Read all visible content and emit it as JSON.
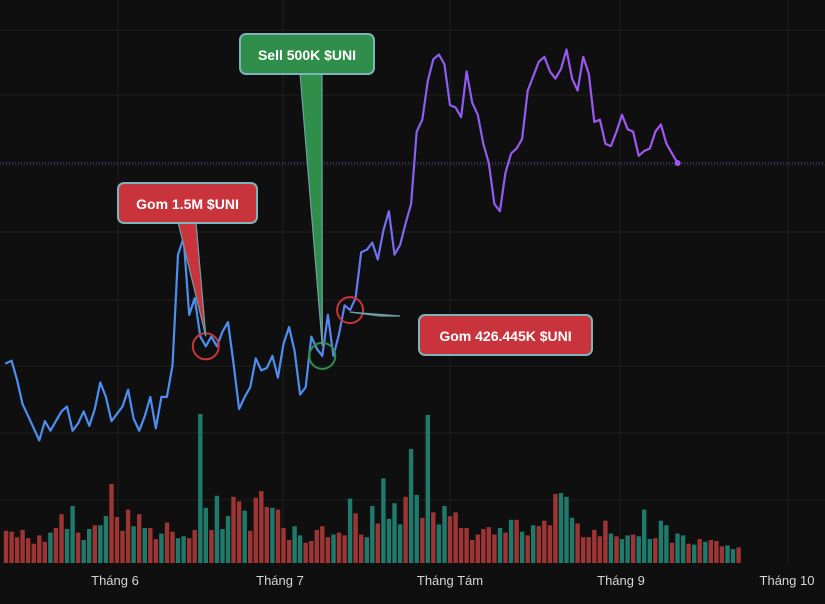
{
  "chart_data": {
    "type": "line",
    "grid": true,
    "price_line": true,
    "colors": {
      "background": "#0f0f0f",
      "grid": "#1f1f1f",
      "line_early": "#4d8ff0",
      "line_late": "#a455f0",
      "volume_up": "#1f7a6c",
      "volume_down": "#9c3534",
      "price_line": "#5a67c8",
      "callout_red": "#c9343c",
      "callout_green": "#2f8f4a"
    },
    "x_ticks": [
      "Tháng 6",
      "Tháng 7",
      "Tháng Tám",
      "Tháng 9",
      "Tháng 10"
    ],
    "price_series": {
      "name": "",
      "values": [
        0.16,
        0.17,
        0.09,
        -0.01,
        -0.06,
        -0.11,
        -0.16,
        -0.08,
        -0.12,
        -0.08,
        -0.04,
        -0.02,
        -0.12,
        -0.09,
        -0.04,
        -0.1,
        -0.03,
        0.08,
        0.02,
        -0.08,
        -0.05,
        -0.02,
        0.05,
        -0.07,
        -0.12,
        -0.06,
        0.02,
        -0.11,
        0.02,
        0.02,
        0.15,
        0.61,
        0.68,
        0.36,
        0.43,
        0.27,
        0.23,
        0.27,
        0.23,
        0.29,
        0.33,
        0.16,
        -0.03,
        0.02,
        0.06,
        0.18,
        0.13,
        0.14,
        0.19,
        0.1,
        0.24,
        0.31,
        0.21,
        0.03,
        0.06,
        0.27,
        0.22,
        0.19,
        0.36,
        0.19,
        0.28,
        0.4,
        0.38,
        0.43,
        0.62,
        0.63,
        0.66,
        0.59,
        0.71,
        0.79,
        0.61,
        0.65,
        0.74,
        0.82,
        1.12,
        1.17,
        1.33,
        1.42,
        1.44,
        1.4,
        1.23,
        1.22,
        1.18,
        1.37,
        1.24,
        1.19,
        1.07,
        0.99,
        0.82,
        0.79,
        0.95,
        1.03,
        1.05,
        1.09,
        1.29,
        1.35,
        1.41,
        1.43,
        1.37,
        1.34,
        1.38,
        1.46,
        1.34,
        1.29,
        1.43,
        1.36,
        1.16,
        1.17,
        1.07,
        1.06,
        1.12,
        1.19,
        1.13,
        1.12,
        1.02,
        1.04,
        1.05,
        1.12,
        1.15,
        1.07,
        1.03,
        0.99
      ]
    },
    "volume": [
      {
        "v": 0.35,
        "up": false
      },
      {
        "v": 0.34,
        "up": false
      },
      {
        "v": 0.28,
        "up": false
      },
      {
        "v": 0.36,
        "up": false
      },
      {
        "v": 0.27,
        "up": false
      },
      {
        "v": 0.21,
        "up": false
      },
      {
        "v": 0.3,
        "up": false
      },
      {
        "v": 0.23,
        "up": false
      },
      {
        "v": 0.33,
        "up": true
      },
      {
        "v": 0.38,
        "up": false
      },
      {
        "v": 0.53,
        "up": false
      },
      {
        "v": 0.37,
        "up": true
      },
      {
        "v": 0.62,
        "up": true
      },
      {
        "v": 0.33,
        "up": false
      },
      {
        "v": 0.25,
        "up": true
      },
      {
        "v": 0.37,
        "up": true
      },
      {
        "v": 0.41,
        "up": false
      },
      {
        "v": 0.41,
        "up": true
      },
      {
        "v": 0.51,
        "up": true
      },
      {
        "v": 0.86,
        "up": false
      },
      {
        "v": 0.5,
        "up": false
      },
      {
        "v": 0.35,
        "up": false
      },
      {
        "v": 0.58,
        "up": false
      },
      {
        "v": 0.4,
        "up": true
      },
      {
        "v": 0.53,
        "up": false
      },
      {
        "v": 0.38,
        "up": true
      },
      {
        "v": 0.38,
        "up": false
      },
      {
        "v": 0.26,
        "up": false
      },
      {
        "v": 0.32,
        "up": true
      },
      {
        "v": 0.44,
        "up": false
      },
      {
        "v": 0.34,
        "up": false
      },
      {
        "v": 0.27,
        "up": true
      },
      {
        "v": 0.29,
        "up": true
      },
      {
        "v": 0.27,
        "up": false
      },
      {
        "v": 0.36,
        "up": false
      },
      {
        "v": 1.62,
        "up": true
      },
      {
        "v": 0.6,
        "up": true
      },
      {
        "v": 0.36,
        "up": false
      },
      {
        "v": 0.73,
        "up": true
      },
      {
        "v": 0.37,
        "up": true
      },
      {
        "v": 0.51,
        "up": true
      },
      {
        "v": 0.72,
        "up": false
      },
      {
        "v": 0.67,
        "up": false
      },
      {
        "v": 0.57,
        "up": true
      },
      {
        "v": 0.35,
        "up": false
      },
      {
        "v": 0.71,
        "up": false
      },
      {
        "v": 0.78,
        "up": false
      },
      {
        "v": 0.61,
        "up": false
      },
      {
        "v": 0.6,
        "up": true
      },
      {
        "v": 0.58,
        "up": false
      },
      {
        "v": 0.38,
        "up": false
      },
      {
        "v": 0.25,
        "up": false
      },
      {
        "v": 0.4,
        "up": true
      },
      {
        "v": 0.3,
        "up": true
      },
      {
        "v": 0.22,
        "up": false
      },
      {
        "v": 0.24,
        "up": false
      },
      {
        "v": 0.36,
        "up": false
      },
      {
        "v": 0.4,
        "up": false
      },
      {
        "v": 0.28,
        "up": false
      },
      {
        "v": 0.31,
        "up": true
      },
      {
        "v": 0.33,
        "up": false
      },
      {
        "v": 0.3,
        "up": false
      },
      {
        "v": 0.7,
        "up": true
      },
      {
        "v": 0.54,
        "up": false
      },
      {
        "v": 0.31,
        "up": false
      },
      {
        "v": 0.28,
        "up": true
      },
      {
        "v": 0.62,
        "up": true
      },
      {
        "v": 0.43,
        "up": false
      },
      {
        "v": 0.92,
        "up": true
      },
      {
        "v": 0.48,
        "up": true
      },
      {
        "v": 0.65,
        "up": true
      },
      {
        "v": 0.42,
        "up": true
      },
      {
        "v": 0.72,
        "up": false
      },
      {
        "v": 1.24,
        "up": true
      },
      {
        "v": 0.74,
        "up": true
      },
      {
        "v": 0.49,
        "up": false
      },
      {
        "v": 1.61,
        "up": true
      },
      {
        "v": 0.55,
        "up": false
      },
      {
        "v": 0.42,
        "up": true
      },
      {
        "v": 0.62,
        "up": true
      },
      {
        "v": 0.51,
        "up": false
      },
      {
        "v": 0.55,
        "up": false
      },
      {
        "v": 0.38,
        "up": false
      },
      {
        "v": 0.38,
        "up": false
      },
      {
        "v": 0.25,
        "up": false
      },
      {
        "v": 0.31,
        "up": false
      },
      {
        "v": 0.37,
        "up": false
      },
      {
        "v": 0.39,
        "up": false
      },
      {
        "v": 0.31,
        "up": false
      },
      {
        "v": 0.38,
        "up": true
      },
      {
        "v": 0.33,
        "up": false
      },
      {
        "v": 0.47,
        "up": true
      },
      {
        "v": 0.47,
        "up": false
      },
      {
        "v": 0.34,
        "up": true
      },
      {
        "v": 0.3,
        "up": false
      },
      {
        "v": 0.41,
        "up": true
      },
      {
        "v": 0.4,
        "up": false
      },
      {
        "v": 0.46,
        "up": false
      },
      {
        "v": 0.41,
        "up": false
      },
      {
        "v": 0.75,
        "up": false
      },
      {
        "v": 0.76,
        "up": true
      },
      {
        "v": 0.72,
        "up": true
      },
      {
        "v": 0.49,
        "up": true
      },
      {
        "v": 0.43,
        "up": false
      },
      {
        "v": 0.28,
        "up": false
      },
      {
        "v": 0.28,
        "up": false
      },
      {
        "v": 0.36,
        "up": false
      },
      {
        "v": 0.29,
        "up": false
      },
      {
        "v": 0.46,
        "up": false
      },
      {
        "v": 0.32,
        "up": true
      },
      {
        "v": 0.29,
        "up": false
      },
      {
        "v": 0.26,
        "up": true
      },
      {
        "v": 0.3,
        "up": true
      },
      {
        "v": 0.31,
        "up": false
      },
      {
        "v": 0.29,
        "up": true
      },
      {
        "v": 0.58,
        "up": true
      },
      {
        "v": 0.26,
        "up": true
      },
      {
        "v": 0.27,
        "up": false
      },
      {
        "v": 0.46,
        "up": true
      },
      {
        "v": 0.41,
        "up": true
      },
      {
        "v": 0.22,
        "up": false
      },
      {
        "v": 0.32,
        "up": true
      },
      {
        "v": 0.3,
        "up": true
      },
      {
        "v": 0.21,
        "up": false
      },
      {
        "v": 0.2,
        "up": true
      },
      {
        "v": 0.26,
        "up": false
      },
      {
        "v": 0.23,
        "up": true
      },
      {
        "v": 0.25,
        "up": false
      },
      {
        "v": 0.24,
        "up": false
      },
      {
        "v": 0.18,
        "up": false
      },
      {
        "v": 0.19,
        "up": true
      },
      {
        "v": 0.15,
        "up": true
      },
      {
        "v": 0.17,
        "up": false
      }
    ],
    "annotations": [
      {
        "label": "Gom 1.5M $UNI",
        "kind": "buy",
        "index": 36,
        "color": "#c9343c"
      },
      {
        "label": "Sell 500K $UNI",
        "kind": "sell",
        "index": 57,
        "color": "#2f8f4a"
      },
      {
        "label": "Gom 426.445K $UNI",
        "kind": "buy",
        "index": 62,
        "color": "#c9343c"
      }
    ]
  }
}
